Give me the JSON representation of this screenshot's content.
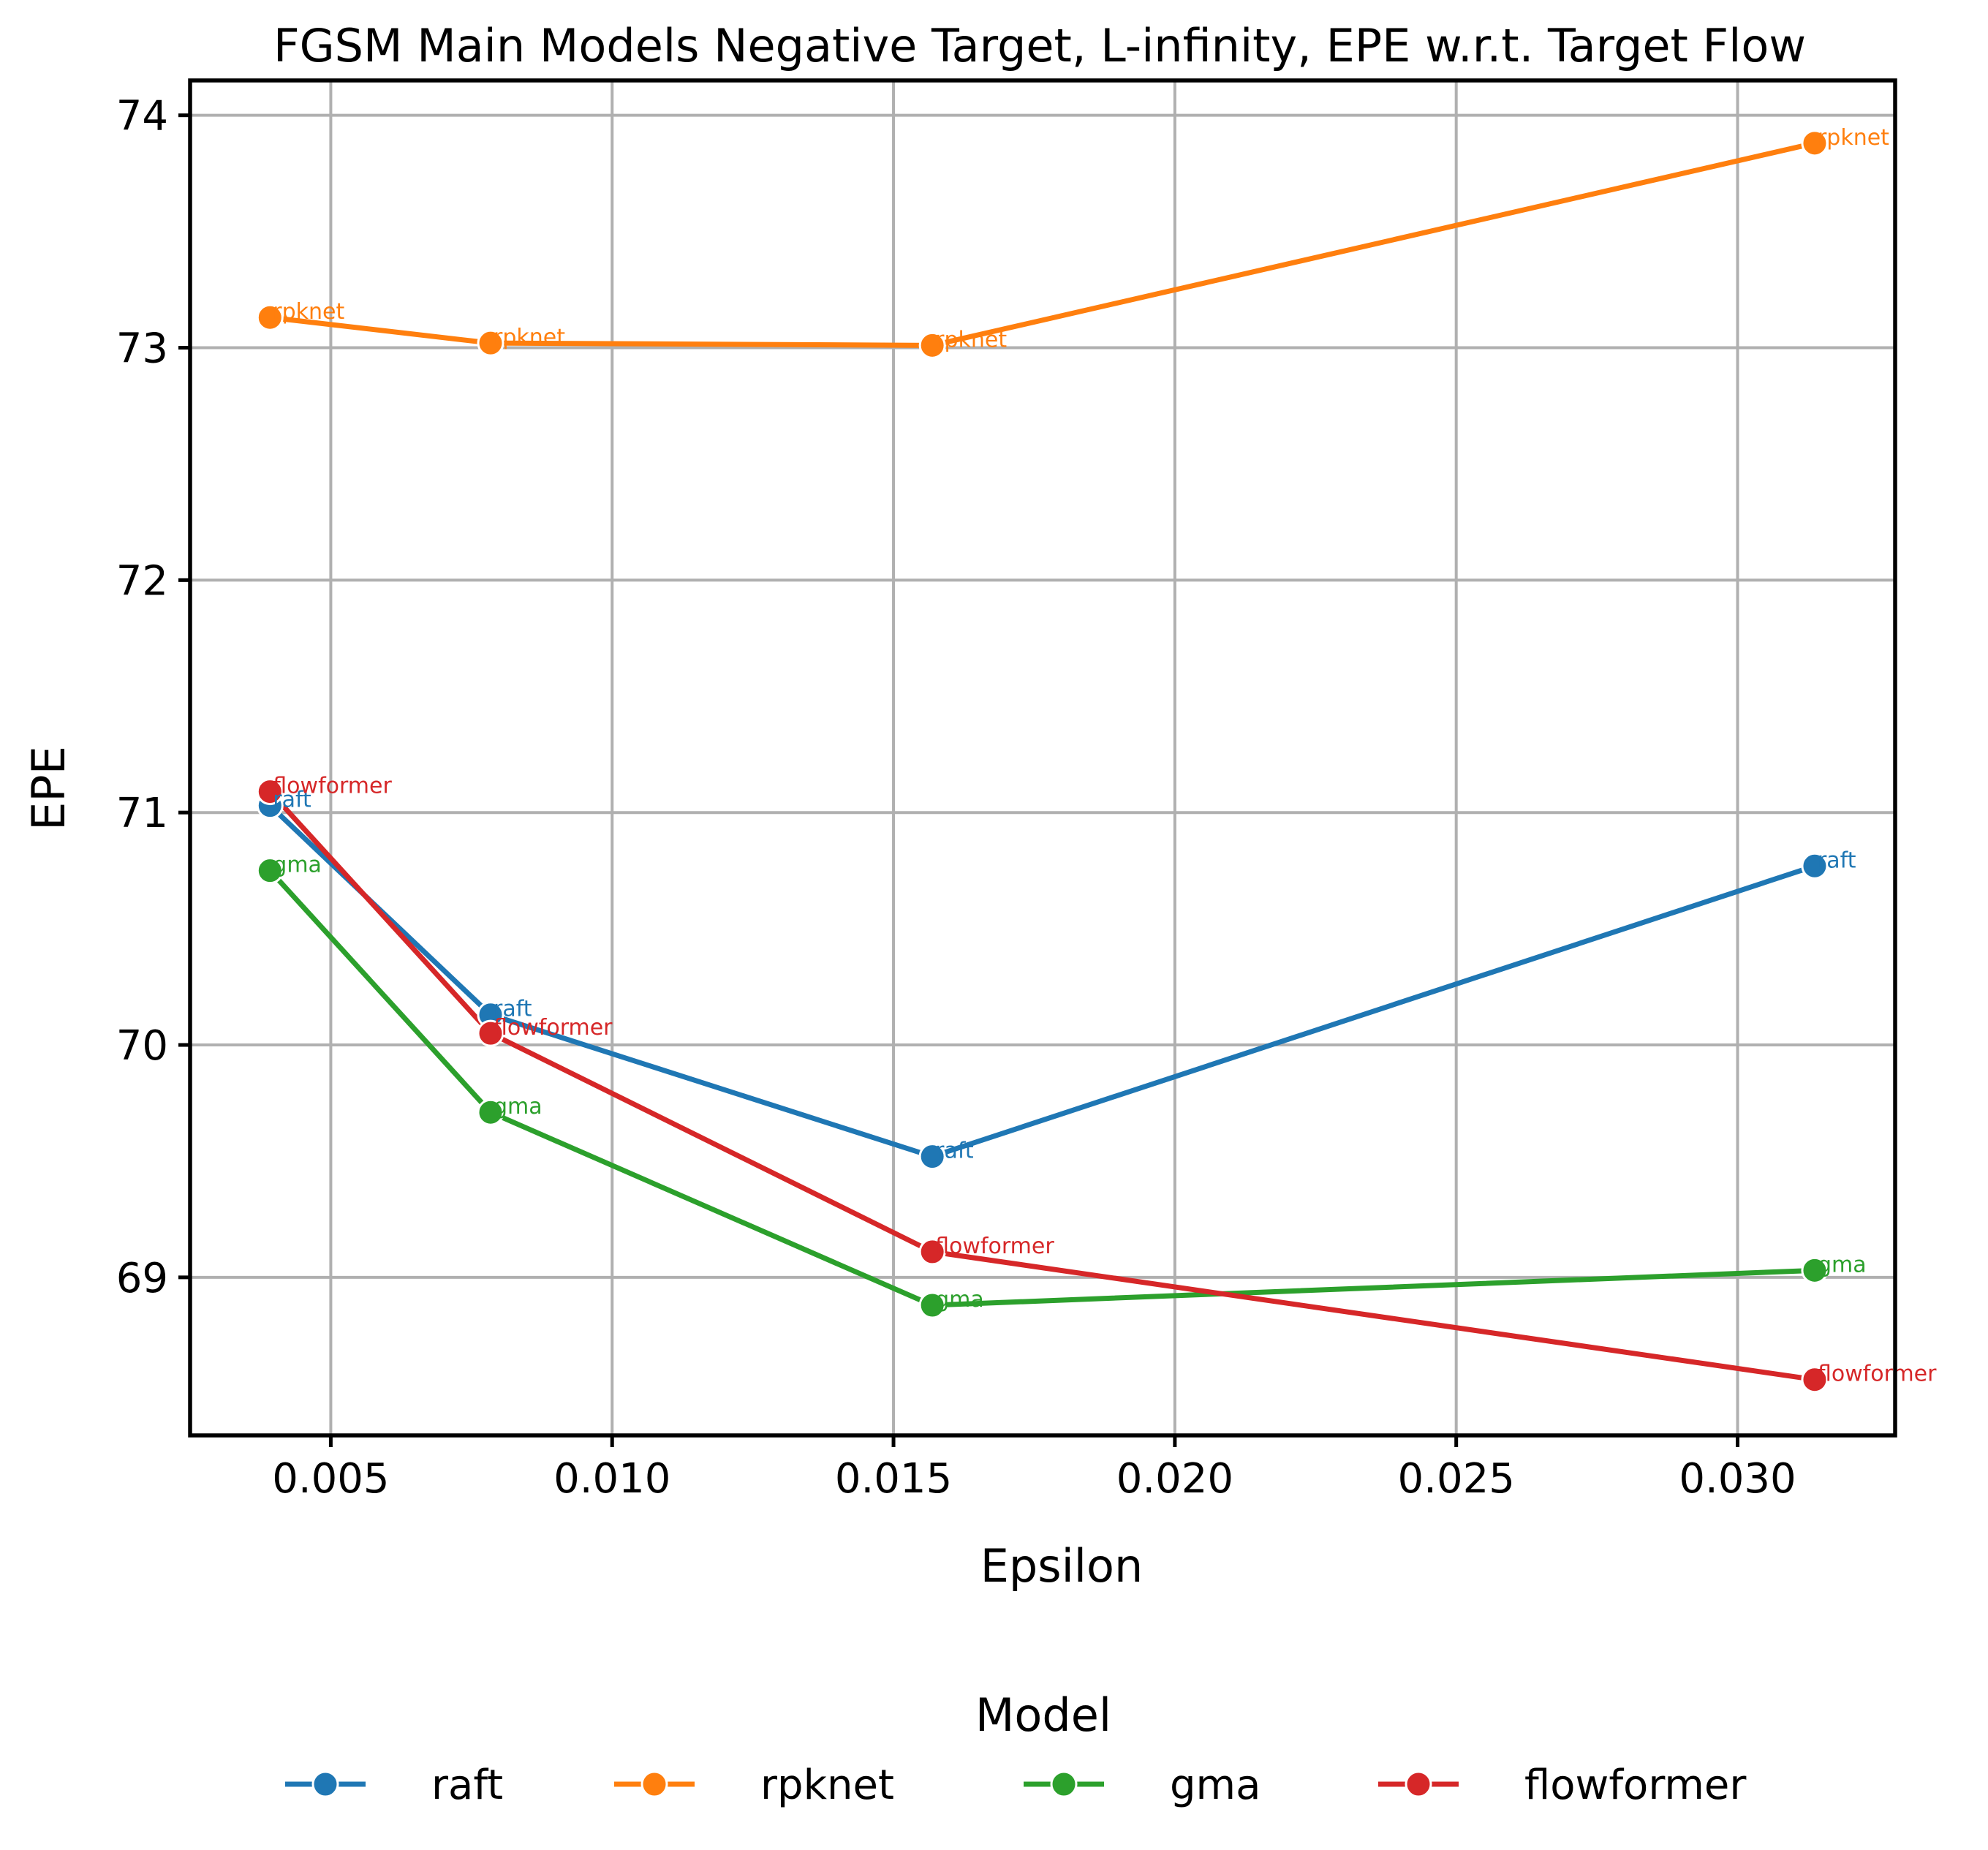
{
  "chart_data": {
    "type": "line",
    "title": "FGSM Main Models Negative Target, L-infinity, EPE w.r.t. Target Flow",
    "xlabel": "Epsilon",
    "ylabel": "EPE",
    "xlim": [
      0.0025,
      0.0328
    ],
    "ylim": [
      68.32,
      74.15
    ],
    "xticks": [
      0.005,
      0.01,
      0.015,
      0.02,
      0.025,
      0.03
    ],
    "xtick_labels": [
      "0.005",
      "0.010",
      "0.015",
      "0.020",
      "0.025",
      "0.030"
    ],
    "yticks": [
      69,
      70,
      71,
      72,
      73,
      74
    ],
    "ytick_labels": [
      "69",
      "70",
      "71",
      "72",
      "73",
      "74"
    ],
    "grid": true,
    "x": [
      0.00392,
      0.00784,
      0.01569,
      0.03137
    ],
    "series": [
      {
        "name": "raft",
        "color": "#1f77b4",
        "values": [
          71.03,
          70.13,
          69.52,
          70.77
        ]
      },
      {
        "name": "rpknet",
        "color": "#ff7f0e",
        "values": [
          73.13,
          73.02,
          73.01,
          73.88
        ]
      },
      {
        "name": "gma",
        "color": "#2ca02c",
        "values": [
          70.75,
          69.71,
          68.88,
          69.03
        ]
      },
      {
        "name": "flowformer",
        "color": "#d62728",
        "values": [
          71.09,
          70.05,
          69.11,
          68.56
        ]
      }
    ],
    "legend": {
      "title": "Model",
      "placement": "bottom-center, below plot, 4 columns"
    }
  }
}
